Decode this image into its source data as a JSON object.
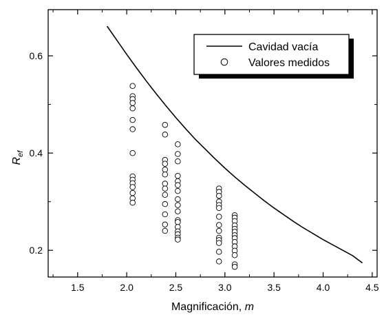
{
  "chart_data": {
    "type": "scatter",
    "title": "",
    "xlabel_main": "Magnificación, ",
    "xlabel_italic": "m",
    "ylabel_main": "R",
    "ylabel_sub": "ef",
    "xlim": [
      1.2,
      4.55
    ],
    "ylim": [
      0.145,
      0.695
    ],
    "xticks": [
      1.5,
      2.0,
      2.5,
      3.0,
      3.5,
      4.0,
      4.5
    ],
    "xtick_labels": [
      "1.5",
      "2.0",
      "2.5",
      "3.0",
      "3.5",
      "4.0",
      "4.5"
    ],
    "yticks": [
      0.2,
      0.4,
      0.6
    ],
    "ytick_labels": [
      "0.2",
      "0.4",
      "0.6"
    ],
    "minor_xticks": [
      1.25,
      1.75,
      2.25,
      2.75,
      3.25,
      3.75,
      4.25
    ],
    "minor_yticks": [
      0.3,
      0.5
    ],
    "grid": false,
    "legend_position": "top-right",
    "series": [
      {
        "name": "Cavidad vacía",
        "kind": "line",
        "color": "#000000",
        "x": [
          1.8,
          1.9,
          2.0,
          2.1,
          2.2,
          2.3,
          2.4,
          2.5,
          2.6,
          2.7,
          2.8,
          2.9,
          3.0,
          3.1,
          3.2,
          3.3,
          3.4,
          3.5,
          3.6,
          3.7,
          3.8,
          3.9,
          4.0,
          4.1,
          4.2,
          4.3,
          4.4
        ],
        "y": [
          0.661,
          0.632,
          0.603,
          0.575,
          0.548,
          0.522,
          0.497,
          0.473,
          0.45,
          0.428,
          0.408,
          0.388,
          0.369,
          0.351,
          0.334,
          0.318,
          0.302,
          0.287,
          0.273,
          0.259,
          0.246,
          0.234,
          0.222,
          0.211,
          0.2,
          0.189,
          0.174
        ]
      },
      {
        "name": "Valores medidos",
        "kind": "scatter",
        "color": "#000000",
        "points": [
          [
            2.06,
            0.538
          ],
          [
            2.06,
            0.517
          ],
          [
            2.06,
            0.511
          ],
          [
            2.06,
            0.503
          ],
          [
            2.06,
            0.492
          ],
          [
            2.06,
            0.468
          ],
          [
            2.06,
            0.449
          ],
          [
            2.06,
            0.4
          ],
          [
            2.06,
            0.352
          ],
          [
            2.06,
            0.345
          ],
          [
            2.06,
            0.338
          ],
          [
            2.06,
            0.33
          ],
          [
            2.06,
            0.318
          ],
          [
            2.06,
            0.307
          ],
          [
            2.06,
            0.298
          ],
          [
            2.39,
            0.458
          ],
          [
            2.39,
            0.438
          ],
          [
            2.39,
            0.386
          ],
          [
            2.39,
            0.378
          ],
          [
            2.39,
            0.366
          ],
          [
            2.39,
            0.356
          ],
          [
            2.39,
            0.337
          ],
          [
            2.39,
            0.327
          ],
          [
            2.39,
            0.314
          ],
          [
            2.39,
            0.295
          ],
          [
            2.39,
            0.274
          ],
          [
            2.39,
            0.253
          ],
          [
            2.39,
            0.24
          ],
          [
            2.52,
            0.418
          ],
          [
            2.52,
            0.398
          ],
          [
            2.52,
            0.383
          ],
          [
            2.52,
            0.353
          ],
          [
            2.52,
            0.342
          ],
          [
            2.52,
            0.334
          ],
          [
            2.52,
            0.322
          ],
          [
            2.52,
            0.305
          ],
          [
            2.52,
            0.293
          ],
          [
            2.52,
            0.28
          ],
          [
            2.52,
            0.262
          ],
          [
            2.52,
            0.258
          ],
          [
            2.52,
            0.248
          ],
          [
            2.52,
            0.239
          ],
          [
            2.52,
            0.233
          ],
          [
            2.52,
            0.226
          ],
          [
            2.52,
            0.222
          ],
          [
            2.94,
            0.327
          ],
          [
            2.94,
            0.32
          ],
          [
            2.94,
            0.312
          ],
          [
            2.94,
            0.3
          ],
          [
            2.94,
            0.293
          ],
          [
            2.94,
            0.287
          ],
          [
            2.94,
            0.269
          ],
          [
            2.94,
            0.252
          ],
          [
            2.94,
            0.24
          ],
          [
            2.94,
            0.226
          ],
          [
            2.94,
            0.221
          ],
          [
            2.94,
            0.215
          ],
          [
            2.94,
            0.197
          ],
          [
            2.94,
            0.177
          ],
          [
            3.1,
            0.272
          ],
          [
            3.1,
            0.267
          ],
          [
            3.1,
            0.26
          ],
          [
            3.1,
            0.251
          ],
          [
            3.1,
            0.244
          ],
          [
            3.1,
            0.238
          ],
          [
            3.1,
            0.231
          ],
          [
            3.1,
            0.225
          ],
          [
            3.1,
            0.217
          ],
          [
            3.1,
            0.208
          ],
          [
            3.1,
            0.199
          ],
          [
            3.1,
            0.19
          ],
          [
            3.1,
            0.171
          ],
          [
            3.1,
            0.166
          ]
        ]
      }
    ]
  }
}
